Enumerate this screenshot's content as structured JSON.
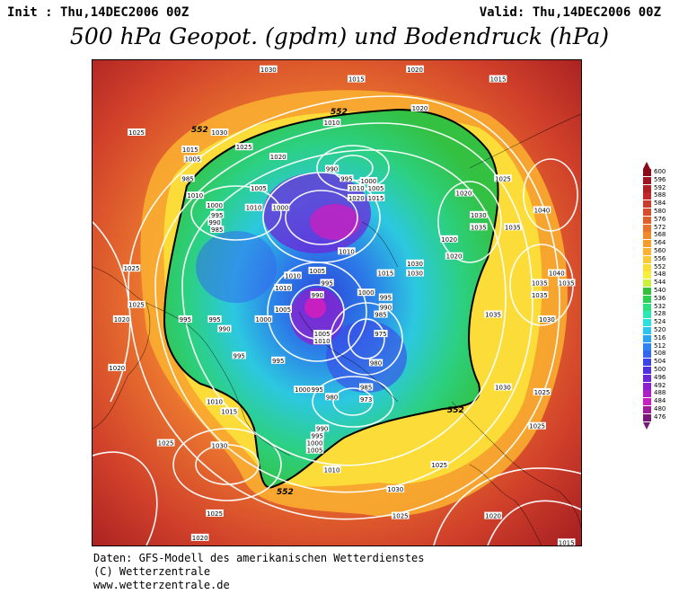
{
  "header": {
    "init": "Init : Thu,14DEC2006 00Z",
    "valid": "Valid: Thu,14DEC2006 00Z",
    "title": "500 hPa Geopot. (gpdm) und Bodendruck (hPa)"
  },
  "map": {
    "geopotential_label": "552",
    "pressure_labels": [
      {
        "text": "1030",
        "fx": 0.36,
        "fy": 0.02
      },
      {
        "text": "1020",
        "fx": 0.66,
        "fy": 0.02
      },
      {
        "text": "1015",
        "fx": 0.54,
        "fy": 0.04
      },
      {
        "text": "1015",
        "fx": 0.83,
        "fy": 0.04
      },
      {
        "text": "1020",
        "fx": 0.67,
        "fy": 0.1
      },
      {
        "text": "1025",
        "fx": 0.09,
        "fy": 0.15
      },
      {
        "text": "1030",
        "fx": 0.26,
        "fy": 0.15
      },
      {
        "text": "1025",
        "fx": 0.31,
        "fy": 0.18
      },
      {
        "text": "1010",
        "fx": 0.49,
        "fy": 0.13
      },
      {
        "text": "1015",
        "fx": 0.2,
        "fy": 0.185
      },
      {
        "text": "1005",
        "fx": 0.205,
        "fy": 0.205
      },
      {
        "text": "1020",
        "fx": 0.38,
        "fy": 0.2
      },
      {
        "text": "990",
        "fx": 0.49,
        "fy": 0.225
      },
      {
        "text": "995",
        "fx": 0.52,
        "fy": 0.245
      },
      {
        "text": "985",
        "fx": 0.195,
        "fy": 0.245
      },
      {
        "text": "1010",
        "fx": 0.21,
        "fy": 0.28
      },
      {
        "text": "1005",
        "fx": 0.34,
        "fy": 0.265
      },
      {
        "text": "1010",
        "fx": 0.54,
        "fy": 0.265
      },
      {
        "text": "1000",
        "fx": 0.565,
        "fy": 0.25
      },
      {
        "text": "1005",
        "fx": 0.58,
        "fy": 0.265
      },
      {
        "text": "1020",
        "fx": 0.54,
        "fy": 0.285
      },
      {
        "text": "1015",
        "fx": 0.58,
        "fy": 0.285
      },
      {
        "text": "1020",
        "fx": 0.76,
        "fy": 0.275
      },
      {
        "text": "1025",
        "fx": 0.84,
        "fy": 0.245
      },
      {
        "text": "1000",
        "fx": 0.25,
        "fy": 0.3
      },
      {
        "text": "995",
        "fx": 0.255,
        "fy": 0.32
      },
      {
        "text": "990",
        "fx": 0.25,
        "fy": 0.335
      },
      {
        "text": "985",
        "fx": 0.255,
        "fy": 0.35
      },
      {
        "text": "1010",
        "fx": 0.33,
        "fy": 0.305
      },
      {
        "text": "1000",
        "fx": 0.385,
        "fy": 0.305
      },
      {
        "text": "1030",
        "fx": 0.79,
        "fy": 0.32
      },
      {
        "text": "1040",
        "fx": 0.92,
        "fy": 0.31
      },
      {
        "text": "1035",
        "fx": 0.79,
        "fy": 0.345
      },
      {
        "text": "1035",
        "fx": 0.86,
        "fy": 0.345
      },
      {
        "text": "1020",
        "fx": 0.73,
        "fy": 0.37
      },
      {
        "text": "1020",
        "fx": 0.74,
        "fy": 0.405
      },
      {
        "text": "1010",
        "fx": 0.52,
        "fy": 0.395
      },
      {
        "text": "1030",
        "fx": 0.66,
        "fy": 0.42
      },
      {
        "text": "1030",
        "fx": 0.66,
        "fy": 0.44
      },
      {
        "text": "1015",
        "fx": 0.6,
        "fy": 0.44
      },
      {
        "text": "1005",
        "fx": 0.46,
        "fy": 0.435
      },
      {
        "text": "1040",
        "fx": 0.95,
        "fy": 0.44
      },
      {
        "text": "1035",
        "fx": 0.97,
        "fy": 0.46
      },
      {
        "text": "1035",
        "fx": 0.915,
        "fy": 0.46
      },
      {
        "text": "1035",
        "fx": 0.915,
        "fy": 0.485
      },
      {
        "text": "1025",
        "fx": 0.08,
        "fy": 0.43
      },
      {
        "text": "1010",
        "fx": 0.41,
        "fy": 0.445
      },
      {
        "text": "995",
        "fx": 0.48,
        "fy": 0.46
      },
      {
        "text": "1010",
        "fx": 0.39,
        "fy": 0.47
      },
      {
        "text": "990",
        "fx": 0.46,
        "fy": 0.485
      },
      {
        "text": "1000",
        "fx": 0.56,
        "fy": 0.48
      },
      {
        "text": "995",
        "fx": 0.6,
        "fy": 0.49
      },
      {
        "text": "990",
        "fx": 0.6,
        "fy": 0.51
      },
      {
        "text": "985",
        "fx": 0.59,
        "fy": 0.525
      },
      {
        "text": "1025",
        "fx": 0.09,
        "fy": 0.505
      },
      {
        "text": "1020",
        "fx": 0.06,
        "fy": 0.535
      },
      {
        "text": "1000",
        "fx": 0.35,
        "fy": 0.535
      },
      {
        "text": "1005",
        "fx": 0.39,
        "fy": 0.515
      },
      {
        "text": "995",
        "fx": 0.19,
        "fy": 0.535
      },
      {
        "text": "995",
        "fx": 0.25,
        "fy": 0.535
      },
      {
        "text": "1030",
        "fx": 0.93,
        "fy": 0.535
      },
      {
        "text": "1035",
        "fx": 0.82,
        "fy": 0.525
      },
      {
        "text": "990",
        "fx": 0.27,
        "fy": 0.555
      },
      {
        "text": "975",
        "fx": 0.59,
        "fy": 0.565
      },
      {
        "text": "1005",
        "fx": 0.47,
        "fy": 0.565
      },
      {
        "text": "1010",
        "fx": 0.47,
        "fy": 0.58
      },
      {
        "text": "995",
        "fx": 0.3,
        "fy": 0.61
      },
      {
        "text": "995",
        "fx": 0.38,
        "fy": 0.62
      },
      {
        "text": "980",
        "fx": 0.58,
        "fy": 0.625
      },
      {
        "text": "1020",
        "fx": 0.05,
        "fy": 0.635
      },
      {
        "text": "1000",
        "fx": 0.43,
        "fy": 0.68
      },
      {
        "text": "995",
        "fx": 0.46,
        "fy": 0.68
      },
      {
        "text": "985",
        "fx": 0.56,
        "fy": 0.675
      },
      {
        "text": "980",
        "fx": 0.49,
        "fy": 0.695
      },
      {
        "text": "973",
        "fx": 0.56,
        "fy": 0.7
      },
      {
        "text": "1030",
        "fx": 0.84,
        "fy": 0.675
      },
      {
        "text": "1025",
        "fx": 0.92,
        "fy": 0.685
      },
      {
        "text": "1010",
        "fx": 0.25,
        "fy": 0.705
      },
      {
        "text": "1015",
        "fx": 0.28,
        "fy": 0.725
      },
      {
        "text": "990",
        "fx": 0.47,
        "fy": 0.76
      },
      {
        "text": "995",
        "fx": 0.46,
        "fy": 0.775
      },
      {
        "text": "1000",
        "fx": 0.455,
        "fy": 0.79
      },
      {
        "text": "1005",
        "fx": 0.455,
        "fy": 0.805
      },
      {
        "text": "1025",
        "fx": 0.91,
        "fy": 0.755
      },
      {
        "text": "1025",
        "fx": 0.15,
        "fy": 0.79
      },
      {
        "text": "1030",
        "fx": 0.26,
        "fy": 0.795
      },
      {
        "text": "1010",
        "fx": 0.49,
        "fy": 0.845
      },
      {
        "text": "1025",
        "fx": 0.71,
        "fy": 0.835
      },
      {
        "text": "1030",
        "fx": 0.62,
        "fy": 0.885
      },
      {
        "text": "1025",
        "fx": 0.25,
        "fy": 0.935
      },
      {
        "text": "1025",
        "fx": 0.63,
        "fy": 0.94
      },
      {
        "text": "1020",
        "fx": 0.82,
        "fy": 0.94
      },
      {
        "text": "1020",
        "fx": 0.22,
        "fy": 0.985
      },
      {
        "text": "1015",
        "fx": 0.97,
        "fy": 0.995
      }
    ]
  },
  "legend": {
    "values": [
      "600",
      "596",
      "592",
      "588",
      "584",
      "580",
      "576",
      "572",
      "568",
      "564",
      "560",
      "556",
      "552",
      "548",
      "544",
      "540",
      "536",
      "532",
      "528",
      "524",
      "520",
      "516",
      "512",
      "508",
      "504",
      "500",
      "496",
      "492",
      "488",
      "484",
      "480",
      "476"
    ],
    "colors": [
      "#8b0a1a",
      "#9e1420",
      "#b01e26",
      "#c0282c",
      "#cc3a2c",
      "#d64c2c",
      "#e0602c",
      "#e8742c",
      "#f0882c",
      "#f69c2c",
      "#fab230",
      "#fcc834",
      "#fcdc38",
      "#f6ee3c",
      "#c8f03c",
      "#34c03c",
      "#2cd050",
      "#2ce082",
      "#2ce8b4",
      "#2ce0e0",
      "#2cc4f0",
      "#2ca4f4",
      "#2c84f4",
      "#3464f0",
      "#3c44e8",
      "#5030e0",
      "#6c28d8",
      "#8c20d0",
      "#ac20c8",
      "#c820c0",
      "#9c1c9c",
      "#781878"
    ]
  },
  "footer": {
    "line1": "Daten: GFS-Modell des amerikanischen Wetterdienstes",
    "line2": "(C) Wetterzentrale",
    "line3": "www.wetterzentrale.de"
  }
}
